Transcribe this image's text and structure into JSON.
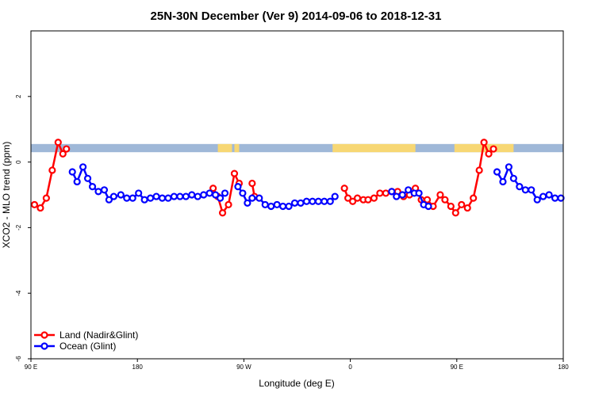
{
  "chart_data": {
    "type": "line",
    "title": "25N-30N December (Ver 9)   2014-09-06 to 2018-12-31",
    "xlabel": "Longitude (deg E)",
    "ylabel": "XCO2 - MLO trend (ppm)",
    "xlim": [
      90,
      540
    ],
    "ylim": [
      -6,
      4
    ],
    "xticks": [
      {
        "value": 90,
        "label": "90 E"
      },
      {
        "value": 180,
        "label": "180"
      },
      {
        "value": 270,
        "label": "90 W"
      },
      {
        "value": 360,
        "label": "0"
      },
      {
        "value": 450,
        "label": "90 E"
      },
      {
        "value": 540,
        "label": "180"
      }
    ],
    "yticks": [
      {
        "value": -6,
        "label": "-6"
      },
      {
        "value": -4,
        "label": "-4"
      },
      {
        "value": -2,
        "label": "-2"
      },
      {
        "value": 0,
        "label": "0"
      },
      {
        "value": 2,
        "label": "2"
      }
    ],
    "land_ocean_band": {
      "y_low": 0.3,
      "y_high": 0.55,
      "ocean_color": "#9fb8d8",
      "land_color": "#f7d774",
      "land_segments": [
        [
          248,
          260
        ],
        [
          262,
          266
        ],
        [
          345,
          415
        ],
        [
          448,
          498
        ]
      ]
    },
    "series": [
      {
        "name": "Land (Nadir&Glint)",
        "color": "#ff0000",
        "segments": [
          [
            [
              93,
              -1.3
            ],
            [
              98,
              -1.4
            ],
            [
              103,
              -1.1
            ],
            [
              108,
              -0.25
            ],
            [
              113,
              0.6
            ],
            [
              117,
              0.25
            ],
            [
              120,
              0.4
            ]
          ],
          [
            [
              244,
              -0.8
            ],
            [
              248,
              -1.05
            ],
            [
              252,
              -1.55
            ],
            [
              257,
              -1.3
            ],
            [
              262,
              -0.35
            ],
            [
              266,
              -0.65
            ]
          ],
          [
            [
              277,
              -0.65
            ],
            [
              279,
              -1.05
            ]
          ],
          [
            [
              355,
              -0.8
            ],
            [
              358,
              -1.1
            ],
            [
              362,
              -1.2
            ],
            [
              366,
              -1.1
            ],
            [
              371,
              -1.15
            ],
            [
              375,
              -1.15
            ],
            [
              380,
              -1.1
            ],
            [
              385,
              -0.95
            ],
            [
              390,
              -0.95
            ],
            [
              395,
              -0.9
            ],
            [
              400,
              -0.9
            ],
            [
              405,
              -1.05
            ],
            [
              410,
              -1.0
            ],
            [
              415,
              -0.8
            ],
            [
              420,
              -1.15
            ],
            [
              425,
              -1.15
            ],
            [
              430,
              -1.35
            ],
            [
              436,
              -1.0
            ],
            [
              440,
              -1.15
            ],
            [
              445,
              -1.35
            ],
            [
              449,
              -1.55
            ],
            [
              454,
              -1.3
            ],
            [
              459,
              -1.4
            ],
            [
              464,
              -1.1
            ],
            [
              469,
              -0.25
            ],
            [
              473,
              0.6
            ],
            [
              477,
              0.25
            ],
            [
              481,
              0.4
            ]
          ]
        ]
      },
      {
        "name": "Ocean (Glint)",
        "color": "#0000ff",
        "segments": [
          [
            [
              125,
              -0.3
            ],
            [
              129,
              -0.6
            ],
            [
              134,
              -0.15
            ],
            [
              138,
              -0.5
            ],
            [
              142,
              -0.75
            ],
            [
              147,
              -0.9
            ],
            [
              152,
              -0.85
            ],
            [
              156,
              -1.15
            ],
            [
              160,
              -1.05
            ],
            [
              166,
              -1.0
            ],
            [
              171,
              -1.1
            ],
            [
              176,
              -1.1
            ],
            [
              181,
              -0.95
            ],
            [
              186,
              -1.15
            ],
            [
              191,
              -1.1
            ],
            [
              196,
              -1.05
            ],
            [
              201,
              -1.1
            ],
            [
              206,
              -1.1
            ],
            [
              211,
              -1.05
            ],
            [
              216,
              -1.05
            ],
            [
              221,
              -1.05
            ],
            [
              226,
              -1.0
            ],
            [
              231,
              -1.05
            ],
            [
              236,
              -1.0
            ],
            [
              241,
              -0.95
            ],
            [
              246,
              -1.0
            ],
            [
              250,
              -1.1
            ],
            [
              254,
              -0.95
            ]
          ],
          [
            [
              265,
              -0.75
            ],
            [
              269,
              -0.95
            ],
            [
              273,
              -1.25
            ],
            [
              277,
              -1.1
            ],
            [
              283,
              -1.1
            ],
            [
              288,
              -1.3
            ],
            [
              293,
              -1.35
            ],
            [
              298,
              -1.3
            ],
            [
              303,
              -1.35
            ],
            [
              308,
              -1.35
            ],
            [
              313,
              -1.25
            ],
            [
              318,
              -1.25
            ],
            [
              323,
              -1.2
            ],
            [
              328,
              -1.2
            ],
            [
              333,
              -1.2
            ],
            [
              338,
              -1.2
            ],
            [
              343,
              -1.2
            ],
            [
              347,
              -1.05
            ]
          ],
          [
            [
              395,
              -0.9
            ],
            [
              399,
              -1.05
            ],
            [
              404,
              -1.0
            ],
            [
              409,
              -0.85
            ],
            [
              414,
              -0.95
            ],
            [
              418,
              -0.95
            ],
            [
              422,
              -1.3
            ],
            [
              426,
              -1.35
            ]
          ],
          [
            [
              484,
              -0.3
            ],
            [
              489,
              -0.6
            ],
            [
              494,
              -0.15
            ],
            [
              498,
              -0.5
            ],
            [
              503,
              -0.75
            ],
            [
              508,
              -0.85
            ],
            [
              513,
              -0.85
            ],
            [
              518,
              -1.15
            ],
            [
              523,
              -1.05
            ],
            [
              528,
              -1.0
            ],
            [
              533,
              -1.1
            ],
            [
              538,
              -1.1
            ]
          ]
        ]
      }
    ],
    "legend": {
      "position": "bottom-left",
      "items": [
        "Land (Nadir&Glint)",
        "Ocean (Glint)"
      ]
    }
  }
}
